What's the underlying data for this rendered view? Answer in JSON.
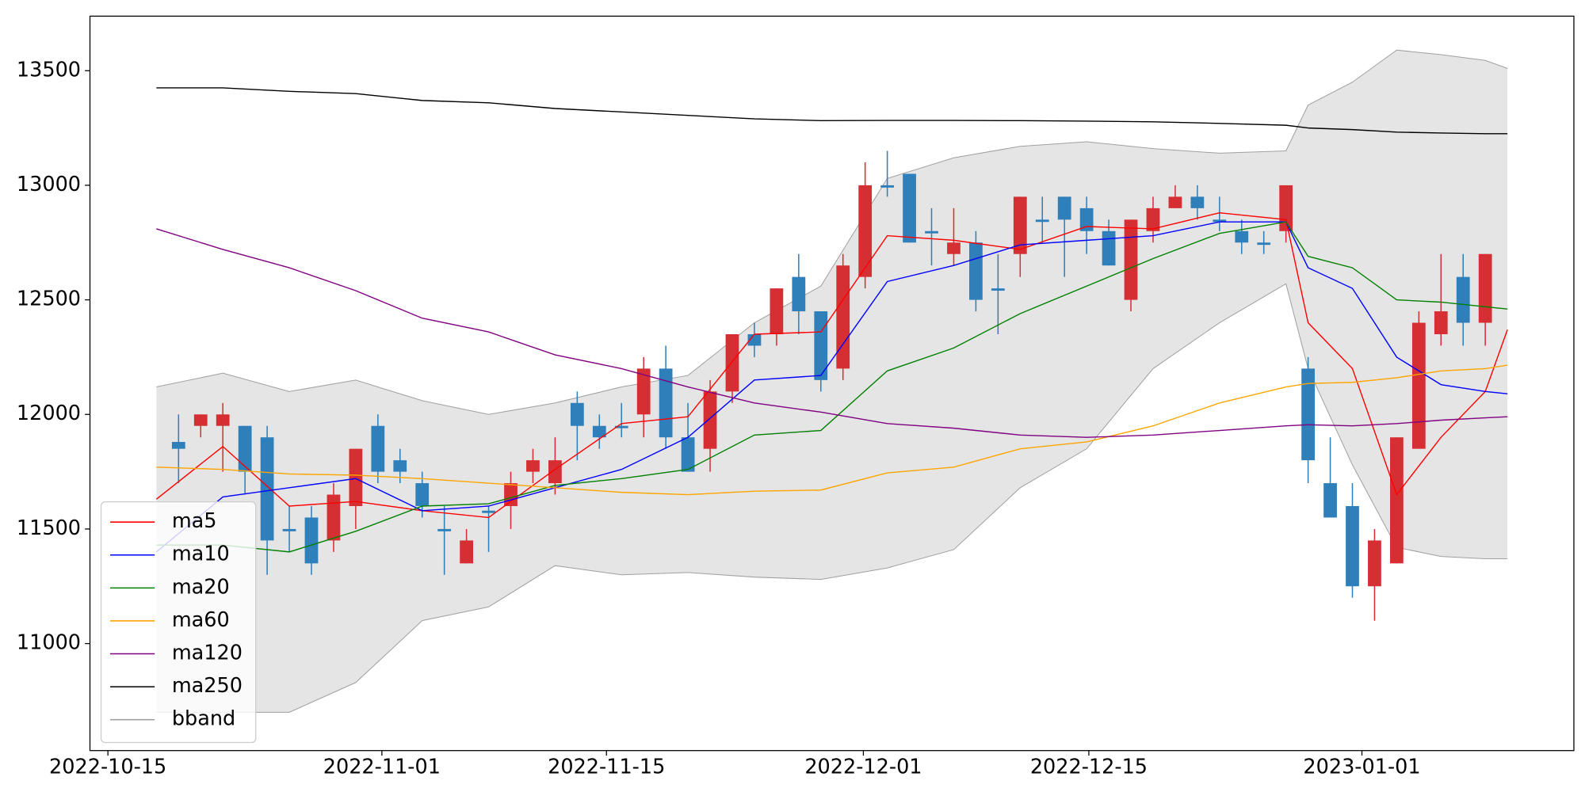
{
  "chart_data": {
    "type": "candlestick",
    "up_color": "#d62f33",
    "down_color": "#2f7fba",
    "x": [
      1,
      2,
      3,
      4,
      5,
      6,
      7,
      8,
      9,
      10,
      11,
      12,
      13,
      14,
      15,
      16,
      17,
      18,
      19,
      20,
      21,
      22,
      23,
      24,
      25,
      26,
      27,
      28,
      29,
      30,
      31,
      32,
      33,
      34,
      35,
      36,
      37,
      38,
      39,
      40,
      41,
      42,
      43,
      44,
      45,
      46,
      47,
      48,
      49,
      50,
      51,
      52,
      53,
      54,
      55,
      56,
      57,
      58,
      59,
      60
    ],
    "open": [
      11880,
      11950,
      11950,
      11950,
      11900,
      11500,
      11550,
      11450,
      11600,
      11950,
      11800,
      11700,
      11500,
      11350,
      11580,
      11600,
      11750,
      11700,
      12050,
      11950,
      11950,
      12000,
      12200,
      11900,
      11850,
      12100,
      12350,
      12350,
      12600,
      12450,
      12200,
      12600,
      13000,
      13050,
      12800,
      12700,
      12750,
      12550,
      12700,
      12850,
      12950,
      12900,
      12800,
      12500,
      12800,
      12900,
      12950,
      12850,
      12800,
      12750,
      12800,
      12200,
      11700,
      11600,
      11250,
      11350,
      11850,
      12350,
      12600,
      12400
    ],
    "high": [
      12000,
      12000,
      12050,
      11950,
      11950,
      11600,
      11600,
      11700,
      11850,
      12000,
      11850,
      11750,
      11600,
      11500,
      11600,
      11750,
      11850,
      11900,
      12100,
      12000,
      12050,
      12250,
      12300,
      12050,
      12150,
      12350,
      12400,
      12550,
      12700,
      12450,
      12700,
      13100,
      13150,
      13050,
      12900,
      12900,
      12800,
      12700,
      12950,
      12950,
      12950,
      12950,
      12850,
      12850,
      12950,
      13000,
      13000,
      12950,
      12850,
      12800,
      13000,
      12250,
      11900,
      11700,
      11500,
      11900,
      12450,
      12700,
      12700,
      12700
    ],
    "low": [
      11700,
      11900,
      11750,
      11650,
      11300,
      11400,
      11300,
      11400,
      11500,
      11700,
      11700,
      11550,
      11300,
      11350,
      11400,
      11500,
      11700,
      11650,
      11800,
      11850,
      11900,
      11900,
      11850,
      11750,
      11750,
      12050,
      12250,
      12300,
      12350,
      12100,
      12150,
      12550,
      12950,
      12750,
      12650,
      12650,
      12450,
      12350,
      12600,
      12750,
      12600,
      12700,
      12650,
      12450,
      12750,
      12900,
      12850,
      12800,
      12700,
      12700,
      12750,
      11700,
      11550,
      11200,
      11100,
      11350,
      11850,
      12300,
      12300,
      12300
    ],
    "close": [
      11850,
      12000,
      12000,
      11750,
      11450,
      11490,
      11350,
      11650,
      11850,
      11750,
      11750,
      11600,
      11490,
      11450,
      11570,
      11700,
      11800,
      11800,
      11950,
      11900,
      11940,
      12200,
      11900,
      11750,
      12100,
      12350,
      12300,
      12550,
      12450,
      12150,
      12650,
      13000,
      12990,
      12750,
      12790,
      12750,
      12500,
      12540,
      12950,
      12840,
      12850,
      12800,
      12650,
      12850,
      12900,
      12950,
      12900,
      12840,
      12750,
      12740,
      13000,
      11800,
      11550,
      11250,
      11450,
      11900,
      12400,
      12450,
      12400,
      12700
    ],
    "lines": {
      "x": [
        0,
        3,
        6,
        9,
        12,
        15,
        18,
        21,
        24,
        27,
        30,
        33,
        36,
        39,
        42,
        45,
        48,
        51,
        52,
        54,
        56,
        58,
        60,
        61
      ],
      "series": [
        {
          "name": "ma5",
          "color": "#ff0000",
          "values": [
            11630,
            11860,
            11600,
            11620,
            11580,
            11550,
            11760,
            11960,
            11990,
            12350,
            12360,
            12780,
            12760,
            12720,
            12820,
            12810,
            12880,
            12850,
            12400,
            12200,
            11650,
            11900,
            12100,
            12370
          ]
        },
        {
          "name": "ma10",
          "color": "#0000ff",
          "values": [
            11400,
            11640,
            11680,
            11720,
            11580,
            11600,
            11680,
            11760,
            11900,
            12150,
            12170,
            12580,
            12650,
            12740,
            12760,
            12780,
            12840,
            12840,
            12640,
            12550,
            12250,
            12130,
            12100,
            12090
          ]
        },
        {
          "name": "ma20",
          "color": "#008000",
          "values": [
            11430,
            11430,
            11400,
            11490,
            11600,
            11610,
            11690,
            11720,
            11760,
            11910,
            11930,
            12190,
            12290,
            12440,
            12560,
            12680,
            12790,
            12840,
            12690,
            12640,
            12500,
            12490,
            12470,
            12460
          ]
        },
        {
          "name": "ma60",
          "color": "#ffa500",
          "values": [
            11770,
            11760,
            11740,
            11735,
            11720,
            11700,
            11680,
            11660,
            11650,
            11665,
            11670,
            11745,
            11770,
            11850,
            11880,
            11950,
            12050,
            12120,
            12135,
            12140,
            12160,
            12190,
            12200,
            12215
          ]
        },
        {
          "name": "ma120",
          "color": "#800080",
          "values": [
            12810,
            12720,
            12640,
            12540,
            12420,
            12360,
            12260,
            12200,
            12120,
            12050,
            12010,
            11960,
            11940,
            11910,
            11900,
            11910,
            11930,
            11950,
            11955,
            11950,
            11960,
            11975,
            11985,
            11990
          ]
        },
        {
          "name": "ma250",
          "color": "#000000",
          "values": [
            13425,
            13425,
            13410,
            13400,
            13370,
            13360,
            13335,
            13320,
            13305,
            13290,
            13282,
            13283,
            13283,
            13282,
            13280,
            13277,
            13270,
            13262,
            13250,
            13243,
            13232,
            13228,
            13225,
            13225
          ]
        }
      ]
    },
    "band": {
      "name": "bband",
      "color": "#a0a0a0",
      "fill": "#e5e5e5",
      "upper": [
        12120,
        12180,
        12100,
        12150,
        12060,
        12000,
        12050,
        12120,
        12170,
        12400,
        12560,
        13030,
        13120,
        13170,
        13190,
        13160,
        13140,
        13150,
        13350,
        13450,
        13590,
        13570,
        13545,
        13510
      ],
      "lower": [
        10700,
        10700,
        10700,
        10830,
        11100,
        11160,
        11340,
        11300,
        11310,
        11290,
        11280,
        11330,
        11410,
        11680,
        11850,
        12200,
        12400,
        12570,
        12200,
        11780,
        11420,
        11380,
        11370,
        11370
      ]
    },
    "xlim": [
      -3,
      64
    ],
    "xticks": [
      {
        "value": -2.19,
        "label": "2022-10-15"
      },
      {
        "value": 10.18,
        "label": "2022-11-01"
      },
      {
        "value": 20.32,
        "label": "2022-11-15"
      },
      {
        "value": 31.92,
        "label": "2022-12-01"
      },
      {
        "value": 42.1,
        "label": "2022-12-15"
      },
      {
        "value": 54.43,
        "label": "2023-01-01"
      }
    ],
    "ylim": [
      10533,
      13738
    ],
    "yticks": [
      11000,
      11500,
      12000,
      12500,
      13000,
      13500
    ],
    "legend": "lower left"
  }
}
